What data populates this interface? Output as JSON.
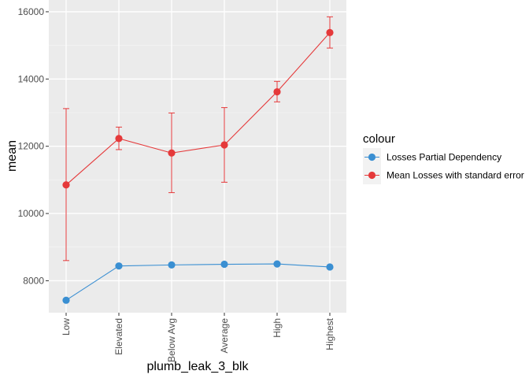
{
  "chart_data": {
    "type": "line",
    "xlabel": "plumb_leak_3_blk",
    "ylabel": "mean",
    "categories": [
      "Low",
      "Elevated",
      "Below Avg",
      "Average",
      "High",
      "Highest"
    ],
    "ylim": [
      7050,
      16350
    ],
    "y_ticks": [
      8000,
      10000,
      12000,
      14000,
      16000
    ],
    "y_tick_labels": [
      "8000",
      "10000",
      "12000",
      "14000",
      "16000"
    ],
    "grid": true,
    "legend": {
      "title": "colour",
      "position": "right"
    },
    "series": [
      {
        "name": "Losses Partial Dependency",
        "color": "#3a8fd2",
        "values": [
          7420,
          8440,
          8470,
          8490,
          8500,
          8410
        ]
      },
      {
        "name": "Mean Losses with standard error",
        "color": "#e5393a",
        "values": [
          10850,
          12230,
          11800,
          12040,
          13620,
          15380
        ],
        "error_low": [
          8600,
          11900,
          10620,
          10930,
          13320,
          14920
        ],
        "error_high": [
          13120,
          12570,
          12990,
          13150,
          13930,
          15850
        ]
      }
    ]
  }
}
